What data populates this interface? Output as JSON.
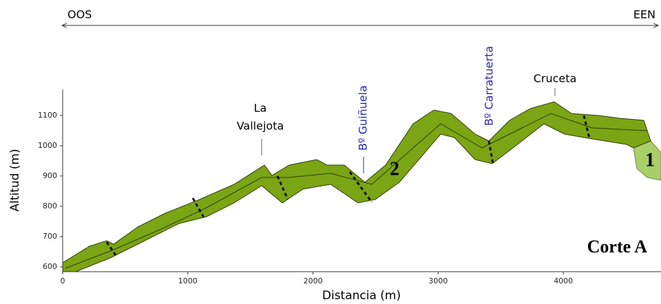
{
  "direction": {
    "left": "OOS",
    "right": "EEN"
  },
  "places": [
    "La Vallejota",
    "Bº Guiñuela",
    "Bº Carratuerta",
    "Cruceta"
  ],
  "units": [
    "1",
    "2"
  ],
  "section": "Corte A",
  "axes": {
    "x": {
      "label": "Distancia (m)",
      "lim": [
        0,
        4780
      ],
      "ticks": [
        0,
        1000,
        2000,
        3000,
        4000
      ]
    },
    "y": {
      "label": "Altitud (m)",
      "lim": [
        584,
        1186
      ],
      "ticks": [
        600,
        700,
        800,
        900,
        1000,
        1100
      ]
    }
  }
}
